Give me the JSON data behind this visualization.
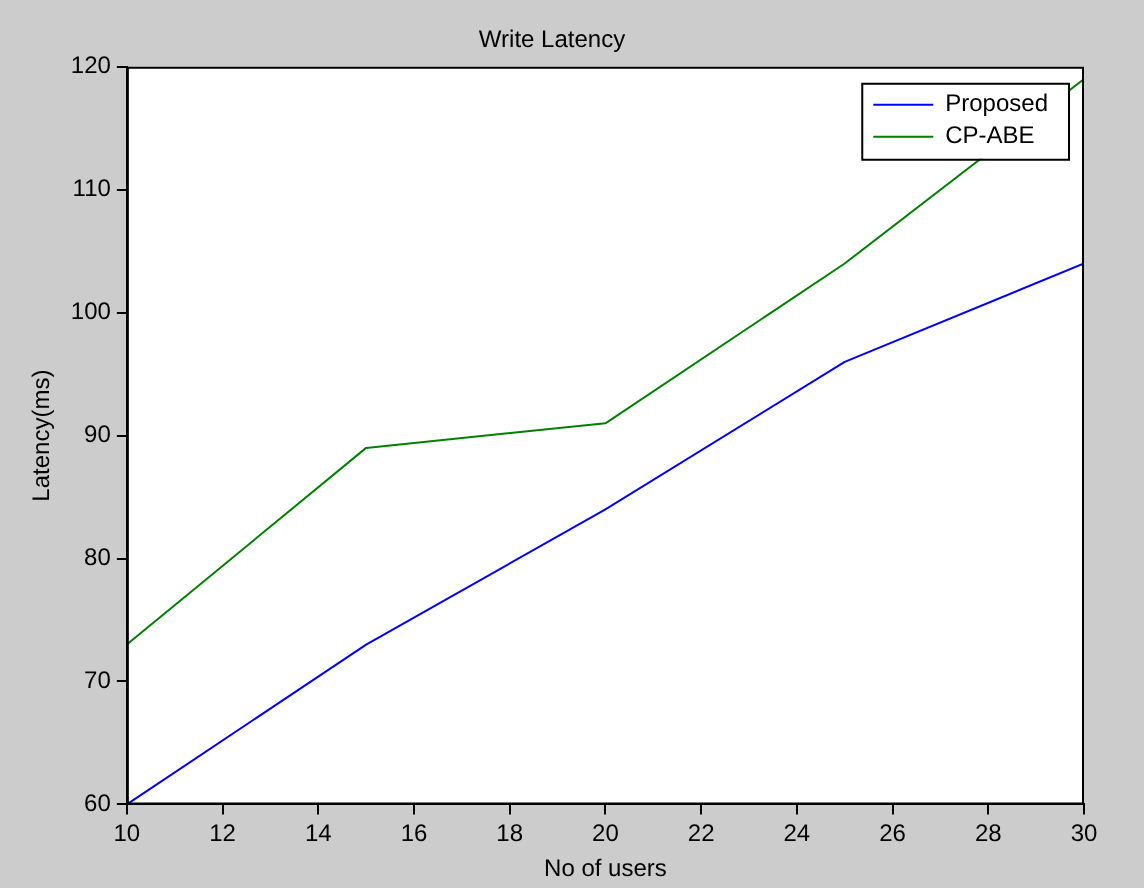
{
  "chart_data": {
    "type": "line",
    "title": "Write Latency",
    "xlabel": "No of users",
    "ylabel": "Latency(ms)",
    "x": [
      10,
      15,
      20,
      25,
      30
    ],
    "series": [
      {
        "name": "Proposed",
        "color": "#0000ff",
        "values": [
          60,
          73,
          84,
          96,
          104
        ]
      },
      {
        "name": "CP-ABE",
        "color": "#008000",
        "values": [
          73,
          89,
          91,
          104,
          119
        ]
      }
    ],
    "xlim": [
      10,
      30
    ],
    "xticks": [
      10,
      12,
      14,
      16,
      18,
      20,
      22,
      24,
      26,
      28,
      30
    ],
    "ylim": [
      60,
      120
    ],
    "yticks": [
      60,
      70,
      80,
      90,
      100,
      110,
      120
    ],
    "grid": false,
    "legend": "top right",
    "marker": "none",
    "line_style": "solid"
  }
}
